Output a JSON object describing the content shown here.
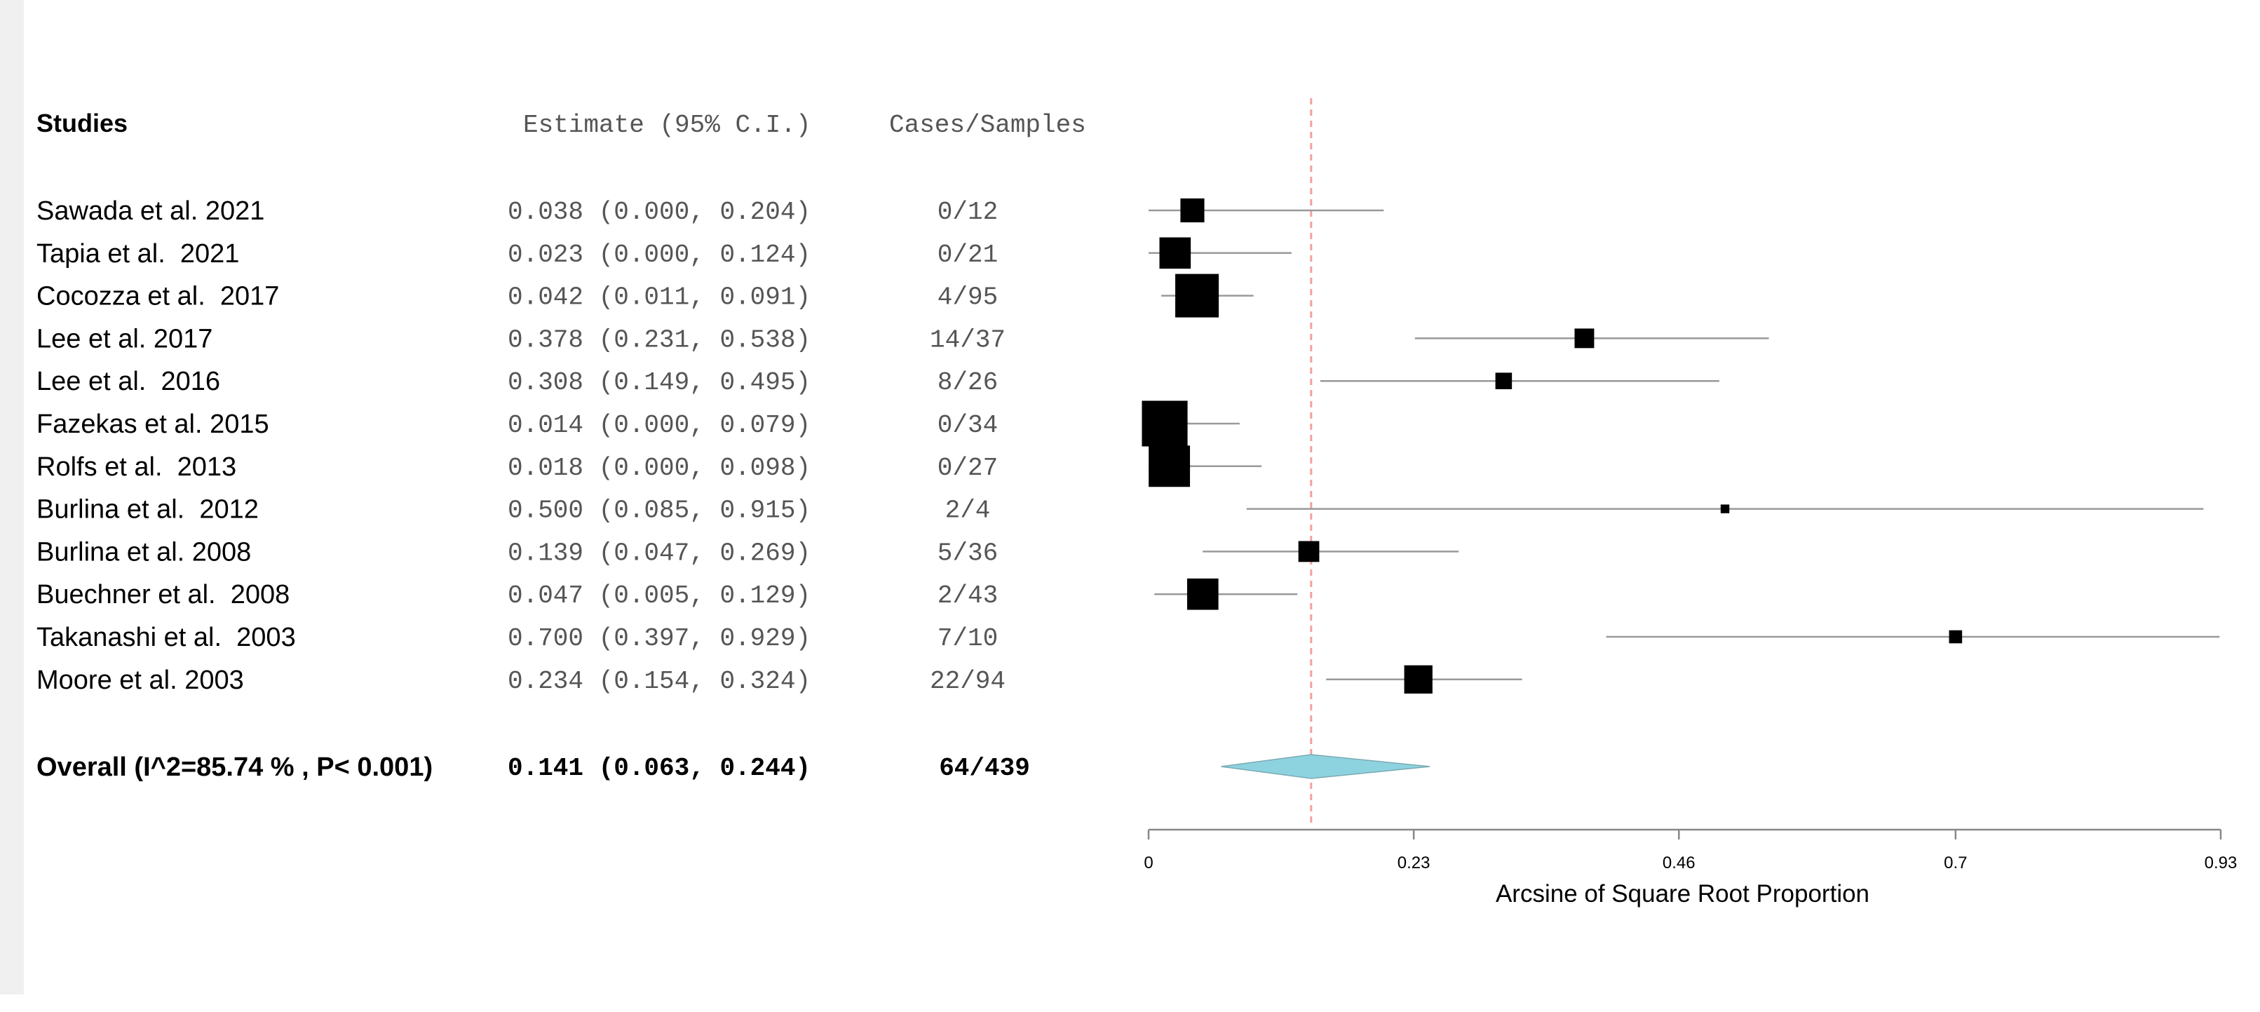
{
  "chart_data": {
    "type": "forest",
    "columns": {
      "studies": "Studies",
      "estimate": "Estimate (95% C.I.)",
      "cases": "Cases/Samples"
    },
    "studies": [
      {
        "label": "Sawada et al. 2021",
        "estimate_text": "0.038 (0.000, 0.204)",
        "cases": "0/12",
        "point": 0.038,
        "lo": 0.0,
        "hi": 0.204,
        "weight": 0.55
      },
      {
        "label": "Tapia et al.  2021",
        "estimate_text": "0.023 (0.000, 0.124)",
        "cases": "0/21",
        "point": 0.023,
        "lo": 0.0,
        "hi": 0.124,
        "weight": 0.72
      },
      {
        "label": "Cocozza et al.  2017",
        "estimate_text": "0.042 (0.011, 0.091)",
        "cases": "4/95",
        "point": 0.042,
        "lo": 0.011,
        "hi": 0.091,
        "weight": 1.0
      },
      {
        "label": "Lee et al. 2017",
        "estimate_text": "0.378 (0.231, 0.538)",
        "cases": "14/37",
        "point": 0.378,
        "lo": 0.231,
        "hi": 0.538,
        "weight": 0.45
      },
      {
        "label": "Lee et al.  2016",
        "estimate_text": "0.308 (0.149, 0.495)",
        "cases": "8/26",
        "point": 0.308,
        "lo": 0.149,
        "hi": 0.495,
        "weight": 0.38
      },
      {
        "label": "Fazekas et al. 2015",
        "estimate_text": "0.014 (0.000, 0.079)",
        "cases": "0/34",
        "point": 0.014,
        "lo": 0.0,
        "hi": 0.079,
        "weight": 1.05
      },
      {
        "label": "Rolfs et al.  2013",
        "estimate_text": "0.018 (0.000, 0.098)",
        "cases": "0/27",
        "point": 0.018,
        "lo": 0.0,
        "hi": 0.098,
        "weight": 0.95
      },
      {
        "label": "Burlina et al.  2012",
        "estimate_text": "0.500 (0.085, 0.915)",
        "cases": "2/4",
        "point": 0.5,
        "lo": 0.085,
        "hi": 0.915,
        "weight": 0.2
      },
      {
        "label": "Burlina et al. 2008",
        "estimate_text": "0.139 (0.047, 0.269)",
        "cases": "5/36",
        "point": 0.139,
        "lo": 0.047,
        "hi": 0.269,
        "weight": 0.48
      },
      {
        "label": "Buechner et al.  2008",
        "estimate_text": "0.047 (0.005, 0.129)",
        "cases": "2/43",
        "point": 0.047,
        "lo": 0.005,
        "hi": 0.129,
        "weight": 0.72
      },
      {
        "label": "Takanashi et al.  2003",
        "estimate_text": "0.700 (0.397, 0.929)",
        "cases": "7/10",
        "point": 0.7,
        "lo": 0.397,
        "hi": 0.929,
        "weight": 0.3
      },
      {
        "label": "Moore et al. 2003",
        "estimate_text": "0.234 (0.154, 0.324)",
        "cases": "22/94",
        "point": 0.234,
        "lo": 0.154,
        "hi": 0.324,
        "weight": 0.65
      }
    ],
    "overall": {
      "label": "Overall (I^2=85.74 % , P< 0.001)",
      "estimate_text": "0.141 (0.063, 0.244)",
      "cases": "64/439",
      "point": 0.141,
      "lo": 0.063,
      "hi": 0.244
    },
    "axis": {
      "label": "Arcsine of Square Root Proportion",
      "range": [
        0,
        0.93
      ],
      "ticks": [
        0,
        0.23,
        0.46,
        0.7,
        0.93
      ],
      "tick_labels": [
        "0",
        "0.23",
        "0.46",
        "0.7",
        "0.93"
      ]
    },
    "reference_line": 0.141,
    "colors": {
      "box": "#000000",
      "ci_line": "#999999",
      "diamond_fill": "#8dd3df",
      "diamond_stroke": "#7aaab3",
      "reference_line": "#f4a0a0",
      "axis": "#888888"
    }
  }
}
